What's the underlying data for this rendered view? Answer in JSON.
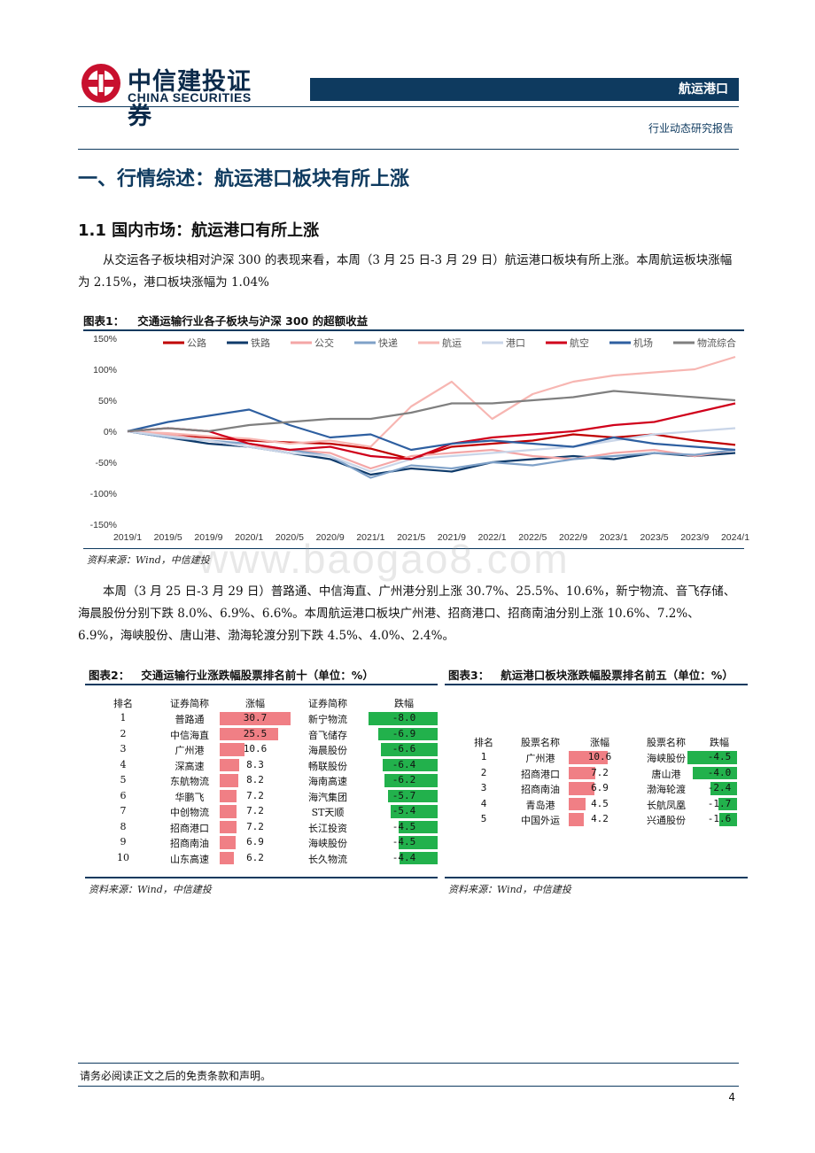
{
  "header": {
    "logo_cn": "中信建投证券",
    "logo_en": "CHINA SECURITIES",
    "sector": "航运港口",
    "report_type": "行业动态研究报告"
  },
  "section1": {
    "title": "一、行情综述：航运港口板块有所上涨",
    "sub_title": "1.1 国内市场：航运港口有所上涨",
    "para1": "从交运各子板块相对沪深 300 的表现来看，本周（3 月 25 日-3 月 29 日）航运港口板块有所上涨。本周航运板块涨幅为 2.15%，港口板块涨幅为 1.04%",
    "para2": "本周（3 月 25 日-3 月 29 日）普路通、中信海直、广州港分别上涨 30.7%、25.5%、10.6%，新宁物流、音飞存储、海晨股份分别下跌 8.0%、6.9%、6.6%。本周航运港口板块广州港、招商港口、招商南油分别上涨 10.6%、7.2%、6.9%，海峡股份、唐山港、渤海轮渡分别下跌 4.5%、4.0%、2.4%。"
  },
  "figure1": {
    "label": "图表1：",
    "title": "交通运输行业各子板块与沪深 300 的超额收益",
    "source": "资料来源：Wind，中信建投"
  },
  "chart_data": {
    "type": "line",
    "title": "交通运输行业各子板块与沪深 300 的超额收益",
    "ylim": [
      -150,
      150
    ],
    "y_ticks": [
      "150%",
      "100%",
      "50%",
      "0%",
      "-50%",
      "-100%",
      "-150%"
    ],
    "x_ticks": [
      "2019/1",
      "2019/5",
      "2019/9",
      "2020/1",
      "2020/5",
      "2020/9",
      "2021/1",
      "2021/5",
      "2021/9",
      "2022/1",
      "2022/5",
      "2022/9",
      "2023/1",
      "2023/5",
      "2023/9",
      "2024/1"
    ],
    "legend_placement": "top",
    "series": [
      {
        "name": "公路",
        "color": "#c00000",
        "values": [
          0,
          -5,
          -10,
          -15,
          -18,
          -20,
          -28,
          -45,
          -25,
          -20,
          -15,
          -5,
          -10,
          -5,
          -15,
          -22
        ]
      },
      {
        "name": "铁路",
        "color": "#0e3a6a",
        "values": [
          0,
          -10,
          -20,
          -25,
          -35,
          -45,
          -70,
          -60,
          -65,
          -50,
          -45,
          -40,
          -45,
          -35,
          -40,
          -35
        ]
      },
      {
        "name": "公交",
        "color": "#f4a6a6",
        "values": [
          0,
          -5,
          -15,
          -25,
          -30,
          -35,
          -60,
          -40,
          -35,
          -30,
          -40,
          -45,
          -35,
          -30,
          -40,
          -30
        ]
      },
      {
        "name": "快递",
        "color": "#7fa1c8",
        "values": [
          0,
          -10,
          -15,
          -20,
          -30,
          -40,
          -75,
          -55,
          -60,
          -50,
          -55,
          -45,
          -40,
          -35,
          -38,
          -30
        ]
      },
      {
        "name": "航运",
        "color": "#f7b6b2",
        "values": [
          0,
          -3,
          -8,
          -12,
          -20,
          -15,
          -25,
          40,
          80,
          20,
          60,
          80,
          90,
          95,
          100,
          120
        ]
      },
      {
        "name": "港口",
        "color": "#c9d5e8",
        "values": [
          0,
          -8,
          -15,
          -25,
          -35,
          -40,
          -65,
          -45,
          -40,
          -35,
          -30,
          -25,
          -15,
          -5,
          0,
          5
        ]
      },
      {
        "name": "航空",
        "color": "#d0001b",
        "values": [
          0,
          5,
          0,
          -20,
          -30,
          -25,
          -40,
          -45,
          -20,
          -10,
          -5,
          0,
          10,
          15,
          30,
          45
        ]
      },
      {
        "name": "机场",
        "color": "#2e5fa0",
        "values": [
          0,
          15,
          25,
          35,
          10,
          -10,
          -5,
          -30,
          -20,
          -15,
          -20,
          -25,
          -10,
          -20,
          -25,
          -30
        ]
      },
      {
        "name": "物流综合",
        "color": "#7f7f7f",
        "values": [
          0,
          5,
          0,
          10,
          15,
          20,
          20,
          30,
          45,
          45,
          50,
          55,
          65,
          60,
          55,
          50
        ]
      }
    ]
  },
  "figure2": {
    "label": "图表2：",
    "title": "交通运输行业涨跌幅股票排名前十（单位：%）",
    "headers": [
      "排名",
      "证券简称",
      "涨幅",
      "证券简称",
      "跌幅"
    ],
    "rows": [
      {
        "rank": "1",
        "up_name": "普路通",
        "up": 30.7,
        "up_text": "30.7",
        "down_name": "新宁物流",
        "down": -8.0,
        "down_text": "-8.0"
      },
      {
        "rank": "2",
        "up_name": "中信海直",
        "up": 25.5,
        "up_text": "25.5",
        "down_name": "音飞储存",
        "down": -6.9,
        "down_text": "-6.9"
      },
      {
        "rank": "3",
        "up_name": "广州港",
        "up": 10.6,
        "up_text": "10.6",
        "down_name": "海晨股份",
        "down": -6.6,
        "down_text": "-6.6"
      },
      {
        "rank": "4",
        "up_name": "深高速",
        "up": 8.3,
        "up_text": "8.3",
        "down_name": "畅联股份",
        "down": -6.4,
        "down_text": "-6.4"
      },
      {
        "rank": "5",
        "up_name": "东航物流",
        "up": 8.2,
        "up_text": "8.2",
        "down_name": "海南高速",
        "down": -6.2,
        "down_text": "-6.2"
      },
      {
        "rank": "6",
        "up_name": "华鹏飞",
        "up": 7.2,
        "up_text": "7.2",
        "down_name": "海汽集团",
        "down": -5.7,
        "down_text": "-5.7"
      },
      {
        "rank": "7",
        "up_name": "中创物流",
        "up": 7.2,
        "up_text": "7.2",
        "down_name": "ST天顺",
        "down": -5.4,
        "down_text": "-5.4"
      },
      {
        "rank": "8",
        "up_name": "招商港口",
        "up": 7.2,
        "up_text": "7.2",
        "down_name": "长江投资",
        "down": -4.5,
        "down_text": "-4.5"
      },
      {
        "rank": "9",
        "up_name": "招商南油",
        "up": 6.9,
        "up_text": "6.9",
        "down_name": "海峡股份",
        "down": -4.5,
        "down_text": "-4.5"
      },
      {
        "rank": "10",
        "up_name": "山东高速",
        "up": 6.2,
        "up_text": "6.2",
        "down_name": "长久物流",
        "down": -4.4,
        "down_text": "-4.4"
      }
    ],
    "source": "资料来源：Wind，中信建投"
  },
  "figure3": {
    "label": "图表3：",
    "title": "航运港口板块涨跌幅股票排名前五（单位：%）",
    "headers": [
      "排名",
      "股票名称",
      "涨幅",
      "股票名称",
      "跌幅"
    ],
    "rows": [
      {
        "rank": "1",
        "up_name": "广州港",
        "up": 10.6,
        "up_text": "10.6",
        "down_name": "海峡股份",
        "down": -4.5,
        "down_text": "-4.5"
      },
      {
        "rank": "2",
        "up_name": "招商港口",
        "up": 7.2,
        "up_text": "7.2",
        "down_name": "唐山港",
        "down": -4.0,
        "down_text": "-4.0"
      },
      {
        "rank": "3",
        "up_name": "招商南油",
        "up": 6.9,
        "up_text": "6.9",
        "down_name": "渤海轮渡",
        "down": -2.4,
        "down_text": "-2.4"
      },
      {
        "rank": "4",
        "up_name": "青岛港",
        "up": 4.5,
        "up_text": "4.5",
        "down_name": "长航凤凰",
        "down": -1.7,
        "down_text": "-1.7"
      },
      {
        "rank": "5",
        "up_name": "中国外运",
        "up": 4.2,
        "up_text": "4.2",
        "down_name": "兴通股份",
        "down": -1.6,
        "down_text": "-1.6"
      }
    ],
    "source": "资料来源：Wind，中信建投"
  },
  "watermark": "www.baogao8.com",
  "footer": {
    "disclaimer": "请务必阅读正文之后的免责条款和声明。",
    "page": "4"
  }
}
